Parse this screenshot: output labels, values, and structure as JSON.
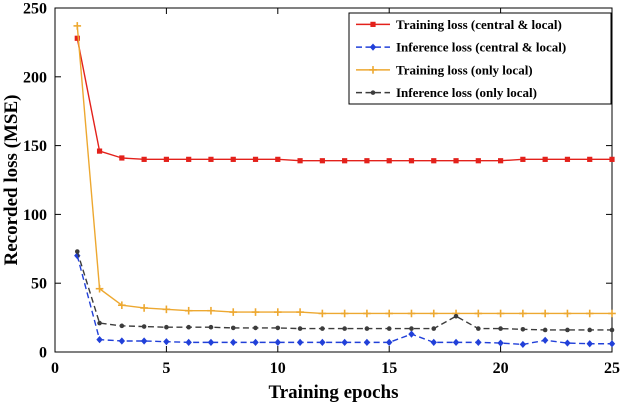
{
  "figure": {
    "background": "#ffffff",
    "axis_color": "#000000"
  },
  "chart_data": {
    "type": "line",
    "title": "",
    "xlabel": "Training epochs",
    "ylabel": "Recorded loss (MSE)",
    "xlim": [
      0,
      25
    ],
    "ylim": [
      0,
      250
    ],
    "xticks": [
      0,
      5,
      10,
      15,
      20,
      25
    ],
    "yticks": [
      0,
      50,
      100,
      150,
      200,
      250
    ],
    "grid": false,
    "legend_position": "top-right",
    "x": [
      1,
      2,
      3,
      4,
      5,
      6,
      7,
      8,
      9,
      10,
      11,
      12,
      13,
      14,
      15,
      16,
      17,
      18,
      19,
      20,
      21,
      22,
      23,
      24,
      25
    ],
    "series": [
      {
        "name": "Training loss (central & local)",
        "color": "#e3211b",
        "line": "solid",
        "marker": "square",
        "values": [
          228,
          146,
          141,
          140,
          140,
          140,
          140,
          140,
          140,
          140,
          139,
          139,
          139,
          139,
          139,
          139,
          139,
          139,
          139,
          139,
          140,
          140,
          140,
          140,
          140
        ]
      },
      {
        "name": "Inference loss (central & local)",
        "color": "#2140d9",
        "line": "dashed",
        "marker": "diamond",
        "values": [
          70,
          9,
          8,
          8,
          7.5,
          7,
          7,
          7,
          7,
          7,
          7,
          7,
          7,
          7,
          7,
          13,
          7,
          7,
          7,
          6.5,
          5.5,
          8.5,
          6.5,
          6,
          6
        ]
      },
      {
        "name": "Training loss (only local)",
        "color": "#eda830",
        "line": "solid",
        "marker": "plus",
        "values": [
          237,
          46,
          34,
          32,
          31,
          30,
          30,
          29,
          29,
          29,
          29,
          28,
          28,
          28,
          28,
          28,
          28,
          28,
          28,
          28,
          28,
          28,
          28,
          28,
          28
        ]
      },
      {
        "name": "Inference loss (only local)",
        "color": "#3c3c3c",
        "line": "dashed",
        "marker": "dot",
        "values": [
          73,
          21,
          19,
          18.5,
          18,
          18,
          18,
          17.5,
          17.5,
          17.5,
          17,
          17,
          17,
          17,
          17,
          17,
          17,
          26,
          17,
          17,
          16.5,
          16,
          16,
          16,
          16
        ]
      }
    ]
  }
}
